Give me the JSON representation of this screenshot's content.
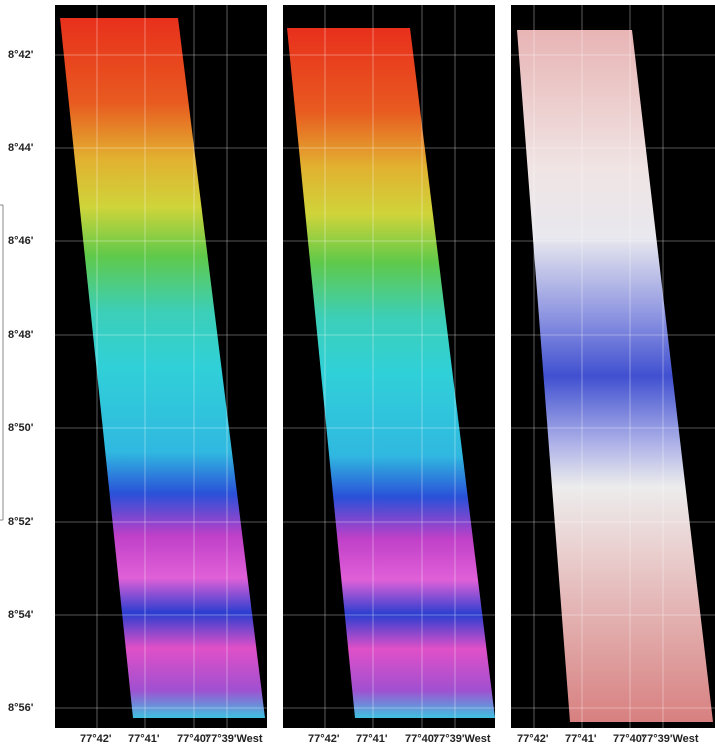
{
  "latitude_labels": [
    "8°42'",
    "8°44'",
    "8°46'",
    "8°48'",
    "8°50'",
    "8°52'",
    "8°54'",
    "8°56'"
  ],
  "panels": [
    {
      "longitude_labels": [
        "77°42'",
        "77°41'",
        "77°40'",
        "77°39'West"
      ]
    },
    {
      "longitude_labels": [
        "77°42'",
        "77°41'",
        "77°40'",
        "77°39'West"
      ]
    },
    {
      "longitude_labels": [
        "77°42'",
        "77°41'",
        "77°40'",
        "77°39'West"
      ]
    }
  ]
}
